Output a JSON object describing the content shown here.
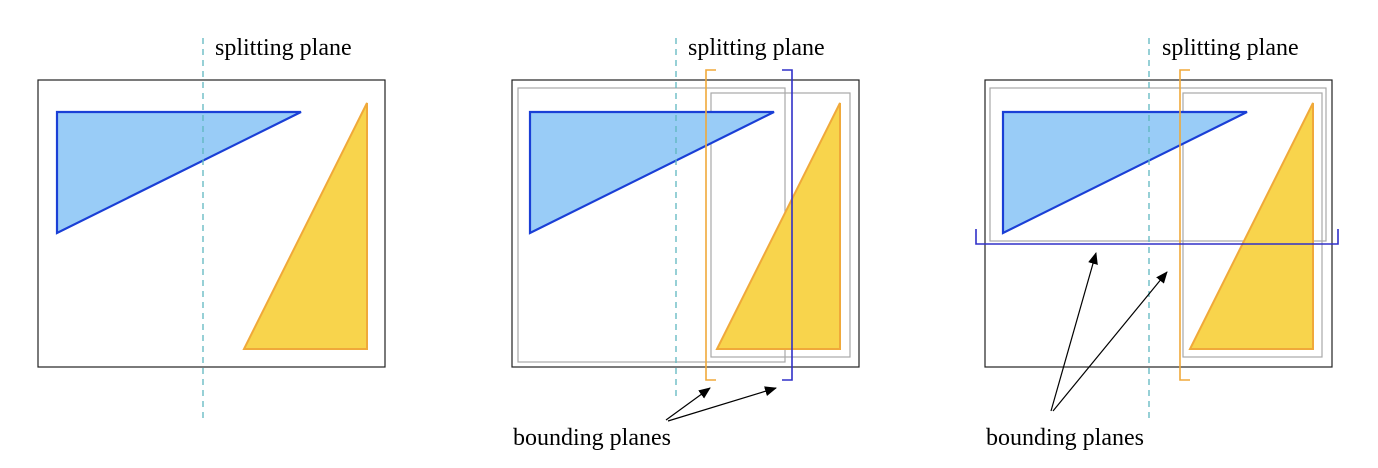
{
  "panels": [
    {
      "id": "panel-1",
      "top_label": "splitting plane"
    },
    {
      "id": "panel-2",
      "top_label": "splitting plane",
      "bottom_label": "bounding planes"
    },
    {
      "id": "panel-3",
      "top_label": "splitting plane",
      "bottom_label": "bounding planes"
    }
  ],
  "colors": {
    "blue_fill": "#99ccf7",
    "blue_stroke": "#1a3fd6",
    "yellow_fill": "#f8d44c",
    "yellow_stroke": "#f0a93a",
    "split_line": "#5fb7bf",
    "box": "#222222",
    "inner_box": "#a8a8a8",
    "orange_bracket": "#f0a93a",
    "blue_bracket": "#3030c8"
  }
}
